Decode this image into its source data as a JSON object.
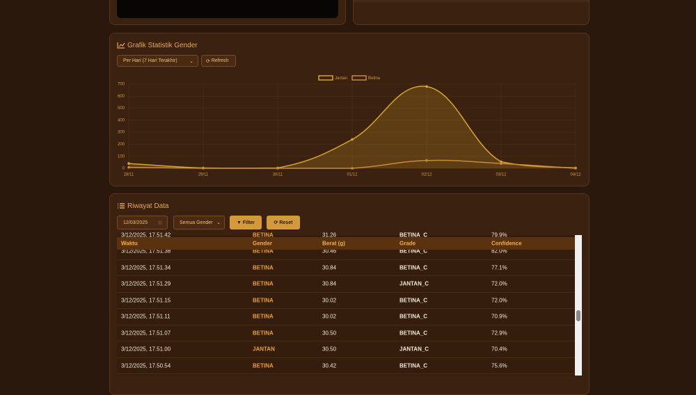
{
  "chart_panel": {
    "title": "Grafik Statistik Gender",
    "period": "Per Hari (7 Hari Terakhir)",
    "refresh": "Refresh"
  },
  "chart_data": {
    "type": "line",
    "categories": [
      "28/11",
      "29/11",
      "30/11",
      "01/12",
      "02/12",
      "03/12",
      "04/12"
    ],
    "series": [
      {
        "name": "Jantan",
        "color": "#d9a626",
        "values": [
          40,
          3,
          3,
          240,
          680,
          55,
          3
        ]
      },
      {
        "name": "Betina",
        "color": "#c98a3a",
        "values": [
          8,
          0,
          0,
          0,
          65,
          40,
          0
        ]
      }
    ],
    "ylim": [
      0,
      700
    ],
    "yticks": [
      0,
      100,
      200,
      300,
      400,
      500,
      600,
      700
    ],
    "grid": true,
    "legend": "top"
  },
  "table_panel": {
    "title": "Riwayat Data",
    "date": "12/03/2025",
    "gender_filter": "Semua Gender",
    "filter": "Filter",
    "reset": "Reset"
  },
  "table": {
    "header": [
      "Waktu",
      "Gender",
      "Berat (g)",
      "Grade",
      "Confidence"
    ],
    "rows": [
      [
        "3/12/2025, 17.51.42",
        "BETINA",
        "31.26",
        "BETINA_C",
        "79.9%"
      ],
      [
        "3/12/2025, 17.51.38",
        "BETINA",
        "30.46",
        "BETINA_C",
        "82.0%"
      ],
      [
        "3/12/2025, 17.51.34",
        "BETINA",
        "30.84",
        "BETINA_C",
        "77.1%"
      ],
      [
        "3/12/2025, 17.51.29",
        "BETINA",
        "30.84",
        "JANTAN_C",
        "72.0%"
      ],
      [
        "3/12/2025, 17.51.15",
        "BETINA",
        "30.02",
        "BETINA_C",
        "72.0%"
      ],
      [
        "3/12/2025, 17.51.11",
        "BETINA",
        "30.02",
        "BETINA_C",
        "70.9%"
      ],
      [
        "3/12/2025, 17.51.07",
        "BETINA",
        "30.50",
        "BETINA_C",
        "72.9%"
      ],
      [
        "3/12/2025, 17.51.00",
        "JANTAN",
        "30.50",
        "JANTAN_C",
        "70.4%"
      ],
      [
        "3/12/2025, 17.50.54",
        "BETINA",
        "30.42",
        "BETINA_C",
        "75.6%"
      ]
    ]
  }
}
